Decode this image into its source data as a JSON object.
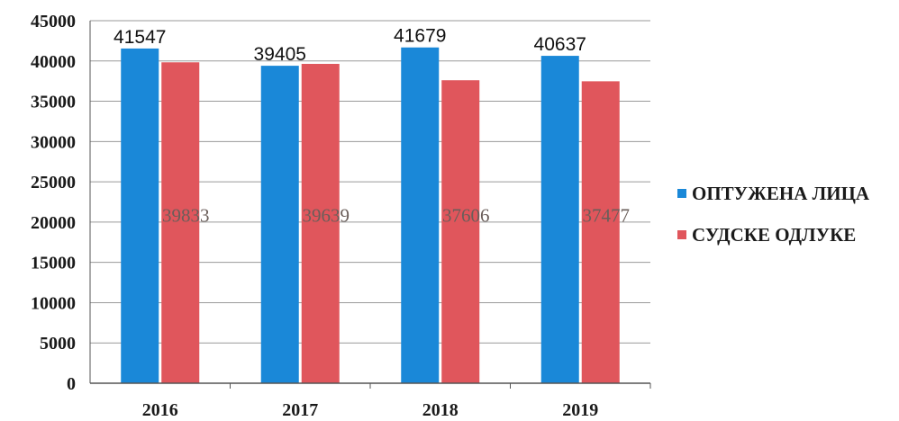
{
  "chart_data": {
    "type": "bar",
    "categories": [
      "2016",
      "2017",
      "2018",
      "2019"
    ],
    "series": [
      {
        "name": "ОПТУЖЕНА ЛИЦА",
        "color": "#1a88d8",
        "values": [
          41547,
          39405,
          41679,
          40637
        ]
      },
      {
        "name": "СУДСКЕ ОДЛУКЕ",
        "color": "#e0565c",
        "values": [
          39833,
          39639,
          37606,
          37477
        ]
      }
    ],
    "ylim": [
      0,
      45000
    ],
    "yticks": [
      0,
      5000,
      10000,
      15000,
      20000,
      25000,
      30000,
      35000,
      40000,
      45000
    ],
    "grid": true,
    "legend": "right"
  }
}
